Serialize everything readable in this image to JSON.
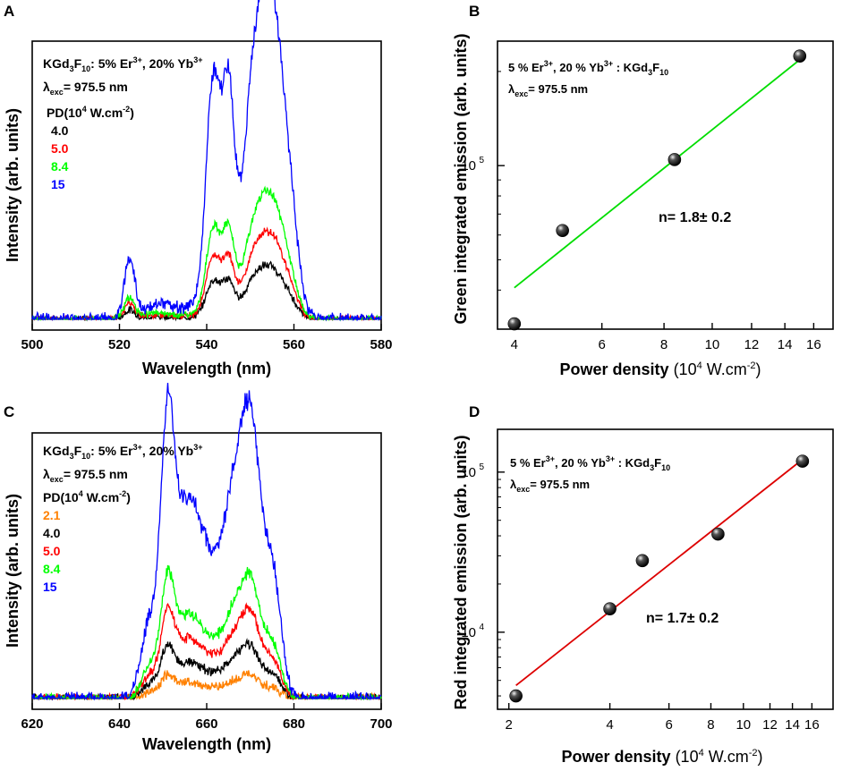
{
  "chart_data": [
    {
      "panel_label": "A",
      "type": "line",
      "xlabel": "Wavelength (nm)",
      "ylabel": "Intensity (arb. units)",
      "xlim": [
        500,
        580
      ],
      "x_ticks": [
        "500",
        "520",
        "540",
        "560",
        "580"
      ],
      "annotation": {
        "compound_base": "KGd",
        "sub_a": "3",
        "compound_mid": "F",
        "sub_b": "10",
        "dopants_1": ": 5% Er",
        "sup_1": "3+",
        "dopants_2": ", 20% Yb",
        "sup_2": "3+",
        "lambda": "λ",
        "lambda_sub": "exc",
        "lambda_value": "= 975.5 nm",
        "pd_label": "PD(10",
        "pd_sup": "4",
        "pd_unit": " W.cm",
        "pd_unit_sup": "-2",
        "pd_close": ")"
      },
      "series": [
        {
          "name": "4.0",
          "color": "#000000",
          "scale": 0.16
        },
        {
          "name": "5.0",
          "color": "#ff0000",
          "scale": 0.26
        },
        {
          "name": "8.4",
          "color": "#00ff00",
          "scale": 0.38
        },
        {
          "name": "15",
          "color": "#0000ff",
          "scale": 1.0
        }
      ],
      "peaks": [
        {
          "center": 522.3,
          "width": 1.2,
          "height": 0.22
        },
        {
          "center": 529,
          "width": 4,
          "height": 0.06
        },
        {
          "center": 541.5,
          "width": 1.6,
          "height": 0.82
        },
        {
          "center": 545,
          "width": 1.3,
          "height": 0.7
        },
        {
          "center": 551.5,
          "width": 2.5,
          "height": 0.88
        },
        {
          "center": 555.5,
          "width": 2.2,
          "height": 0.85
        },
        {
          "center": 559,
          "width": 2.0,
          "height": 0.38
        },
        {
          "center": 547,
          "width": 6,
          "height": 0.2
        }
      ]
    },
    {
      "panel_label": "B",
      "type": "scatter",
      "xscale": "log",
      "yscale": "log",
      "xlabel": "Power density",
      "xlabel_unit": "(10",
      "xlabel_unit_sup": "4",
      "xlabel_unit_mid": " W.cm",
      "xlabel_unit_sup2": "-2",
      "xlabel_unit_close": ")",
      "ylabel": "Green integrated emission (arb. units)",
      "xlim": [
        3.7,
        17.5
      ],
      "ylim": [
        30000,
        250000
      ],
      "x_ticks": [
        4,
        6,
        8,
        10,
        12,
        14,
        16
      ],
      "y_tick_label": "10",
      "y_tick_sup": "5",
      "y_tick_value": 100000,
      "points": [
        {
          "x": 4.0,
          "y": 31200
        },
        {
          "x": 5.0,
          "y": 62000
        },
        {
          "x": 8.4,
          "y": 104500
        },
        {
          "x": 15.0,
          "y": 224000
        }
      ],
      "fit": {
        "color": "#00dd00",
        "x": [
          4.0,
          15.0
        ],
        "y": [
          40700,
          218000
        ]
      },
      "fit_label": "n= 1.8± 0.2",
      "annotation": {
        "line1_a": "5 % Er",
        "sup_1": "3+",
        "line1_b": ", 20 % Yb",
        "sup_2": "3+",
        "line1_c": " : KGd",
        "sub_a": "3",
        "line1_d": "F",
        "sub_b": "10",
        "lambda": "λ",
        "lambda_sub": "exc",
        "lambda_value": "= 975.5 nm"
      }
    },
    {
      "panel_label": "C",
      "type": "line",
      "xlabel": "Wavelength (nm)",
      "ylabel": "Intensity (arb. units)",
      "xlim": [
        620,
        700
      ],
      "x_ticks": [
        "620",
        "640",
        "660",
        "680",
        "700"
      ],
      "annotation": {
        "compound_base": "KGd",
        "sub_a": "3",
        "compound_mid": "F",
        "sub_b": "10",
        "dopants_1": ": 5% Er",
        "sup_1": "3+",
        "dopants_2": ", 20% Yb",
        "sup_2": "3+",
        "lambda": "λ",
        "lambda_sub": "exc",
        "lambda_value": "= 975.5 nm",
        "pd_label": "PD(10",
        "pd_sup": "4",
        "pd_unit": " W.cm",
        "pd_unit_sup": "-2",
        "pd_close": ")"
      },
      "series": [
        {
          "name": "2.1",
          "color": "#ff8000",
          "scale": 0.08
        },
        {
          "name": "4.0",
          "color": "#000000",
          "scale": 0.18
        },
        {
          "name": "5.0",
          "color": "#ff0000",
          "scale": 0.3
        },
        {
          "name": "8.4",
          "color": "#00ff00",
          "scale": 0.42
        },
        {
          "name": "15",
          "color": "#0000ff",
          "scale": 1.0
        }
      ],
      "peaks": [
        {
          "center": 651,
          "width": 1.5,
          "height": 0.9
        },
        {
          "center": 655,
          "width": 3,
          "height": 0.62
        },
        {
          "center": 661,
          "width": 4,
          "height": 0.48
        },
        {
          "center": 667,
          "width": 2.5,
          "height": 0.68
        },
        {
          "center": 670.5,
          "width": 2,
          "height": 0.82
        },
        {
          "center": 647,
          "width": 2,
          "height": 0.3
        },
        {
          "center": 675,
          "width": 2,
          "height": 0.5
        }
      ]
    },
    {
      "panel_label": "D",
      "type": "scatter",
      "xscale": "log",
      "yscale": "log",
      "xlabel": "Power density",
      "xlabel_unit": "(10",
      "xlabel_unit_sup": "4",
      "xlabel_unit_mid": " W.cm",
      "xlabel_unit_sup2": "-2",
      "xlabel_unit_close": ")",
      "ylabel": "Red integrated emission (arb. units)",
      "xlim": [
        1.85,
        18.5
      ],
      "ylim": [
        3300,
        185000
      ],
      "x_ticks": [
        2,
        4,
        6,
        8,
        10,
        12,
        14,
        16
      ],
      "y_ticks": [
        {
          "label": "10",
          "sup": "4",
          "value": 10000
        },
        {
          "label": "10",
          "sup": "5",
          "value": 100000
        }
      ],
      "points": [
        {
          "x": 2.1,
          "y": 4000
        },
        {
          "x": 4.0,
          "y": 14000
        },
        {
          "x": 5.0,
          "y": 28000
        },
        {
          "x": 8.4,
          "y": 41000
        },
        {
          "x": 15.0,
          "y": 117000
        }
      ],
      "fit": {
        "color": "#dd0000",
        "x": [
          2.1,
          15.0
        ],
        "y": [
          4650,
          120000
        ]
      },
      "fit_label": "n= 1.7± 0.2",
      "annotation": {
        "line1_a": "5 % Er",
        "sup_1": "3+",
        "line1_b": ", 20 % Yb",
        "sup_2": "3+",
        "line1_c": " : KGd",
        "sub_a": "3",
        "line1_d": "F",
        "sub_b": "10",
        "lambda": "λ",
        "lambda_sub": "exc",
        "lambda_value": "= 975.5 nm"
      }
    }
  ]
}
